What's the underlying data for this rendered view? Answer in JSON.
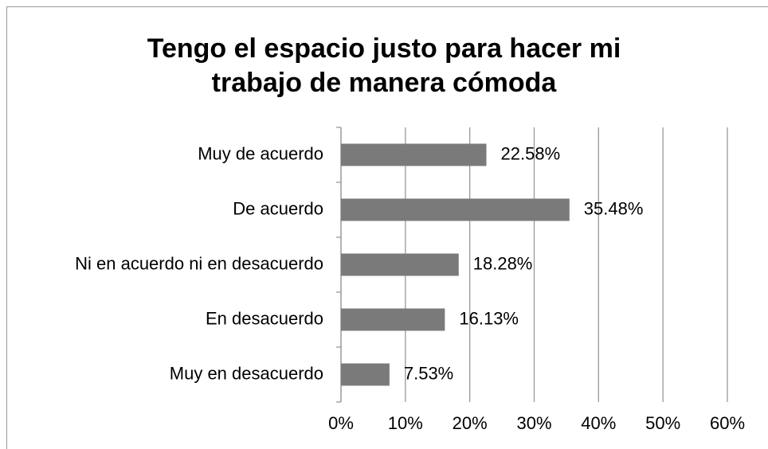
{
  "chart_data": {
    "type": "bar",
    "orientation": "horizontal",
    "title": "Tengo el espacio justo para hacer mi trabajo de manera cómoda",
    "categories": [
      "Muy de acuerdo",
      "De acuerdo",
      "Ni en acuerdo ni en desacuerdo",
      "En desacuerdo",
      "Muy en desacuerdo"
    ],
    "values": [
      22.58,
      35.48,
      18.28,
      16.13,
      7.53
    ],
    "value_labels": [
      "22.58%",
      "35.48%",
      "18.28%",
      "16.13%",
      "7.53%"
    ],
    "color": "#7a7a7a",
    "xlim": [
      0,
      60
    ],
    "xticks": [
      {
        "value": 0,
        "label": "0%"
      },
      {
        "value": 10,
        "label": "10%"
      },
      {
        "value": 20,
        "label": "20%"
      },
      {
        "value": 30,
        "label": "30%"
      },
      {
        "value": 40,
        "label": "40%"
      },
      {
        "value": 50,
        "label": "50%"
      },
      {
        "value": 60,
        "label": "60%"
      }
    ],
    "grid": true
  }
}
